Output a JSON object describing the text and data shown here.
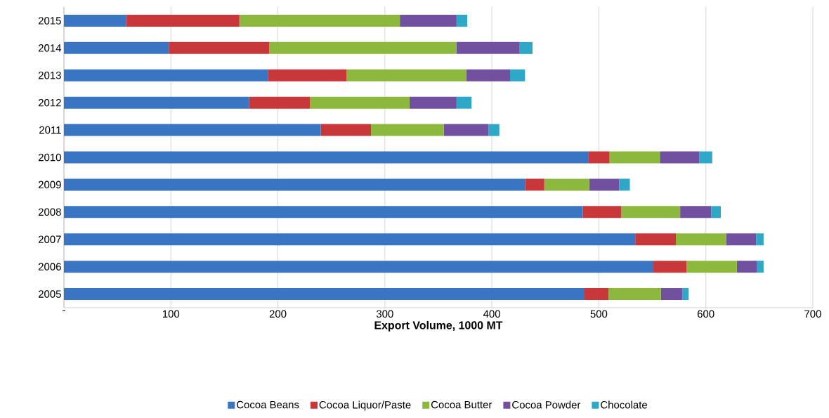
{
  "chart_data": {
    "type": "bar",
    "orientation": "horizontal",
    "stacked": true,
    "xlabel": "Export Volume,  1000 MT",
    "categories": [
      "2015",
      "2014",
      "2013",
      "2012",
      "2011",
      "2010",
      "2009",
      "2008",
      "2007",
      "2006",
      "2005"
    ],
    "series": [
      {
        "name": "Cocoa Beans",
        "color": "#3a75c4",
        "values": [
          58,
          98,
          191,
          173,
          240,
          490,
          431,
          485,
          534,
          551,
          486
        ]
      },
      {
        "name": "Cocoa Liquor/Paste",
        "color": "#c8383a",
        "values": [
          106,
          94,
          73,
          57,
          47,
          20,
          18,
          36,
          38,
          31,
          23
        ]
      },
      {
        "name": "Cocoa Butter",
        "color": "#8db83e",
        "values": [
          150,
          175,
          112,
          93,
          68,
          47,
          42,
          55,
          47,
          47,
          49
        ]
      },
      {
        "name": "Cocoa Powder",
        "color": "#7150a0",
        "values": [
          53,
          59,
          41,
          44,
          42,
          37,
          28,
          29,
          28,
          19,
          20
        ]
      },
      {
        "name": "Chocolate",
        "color": "#2fa8c8",
        "values": [
          10,
          12,
          14,
          14,
          10,
          12,
          10,
          9,
          7,
          6,
          6
        ]
      }
    ],
    "xlim": [
      0,
      700
    ],
    "xticks": [
      {
        "value": 0,
        "label": "-"
      },
      100,
      200,
      300,
      400,
      500,
      600,
      700
    ],
    "grid": "x",
    "legend": "bottom"
  }
}
